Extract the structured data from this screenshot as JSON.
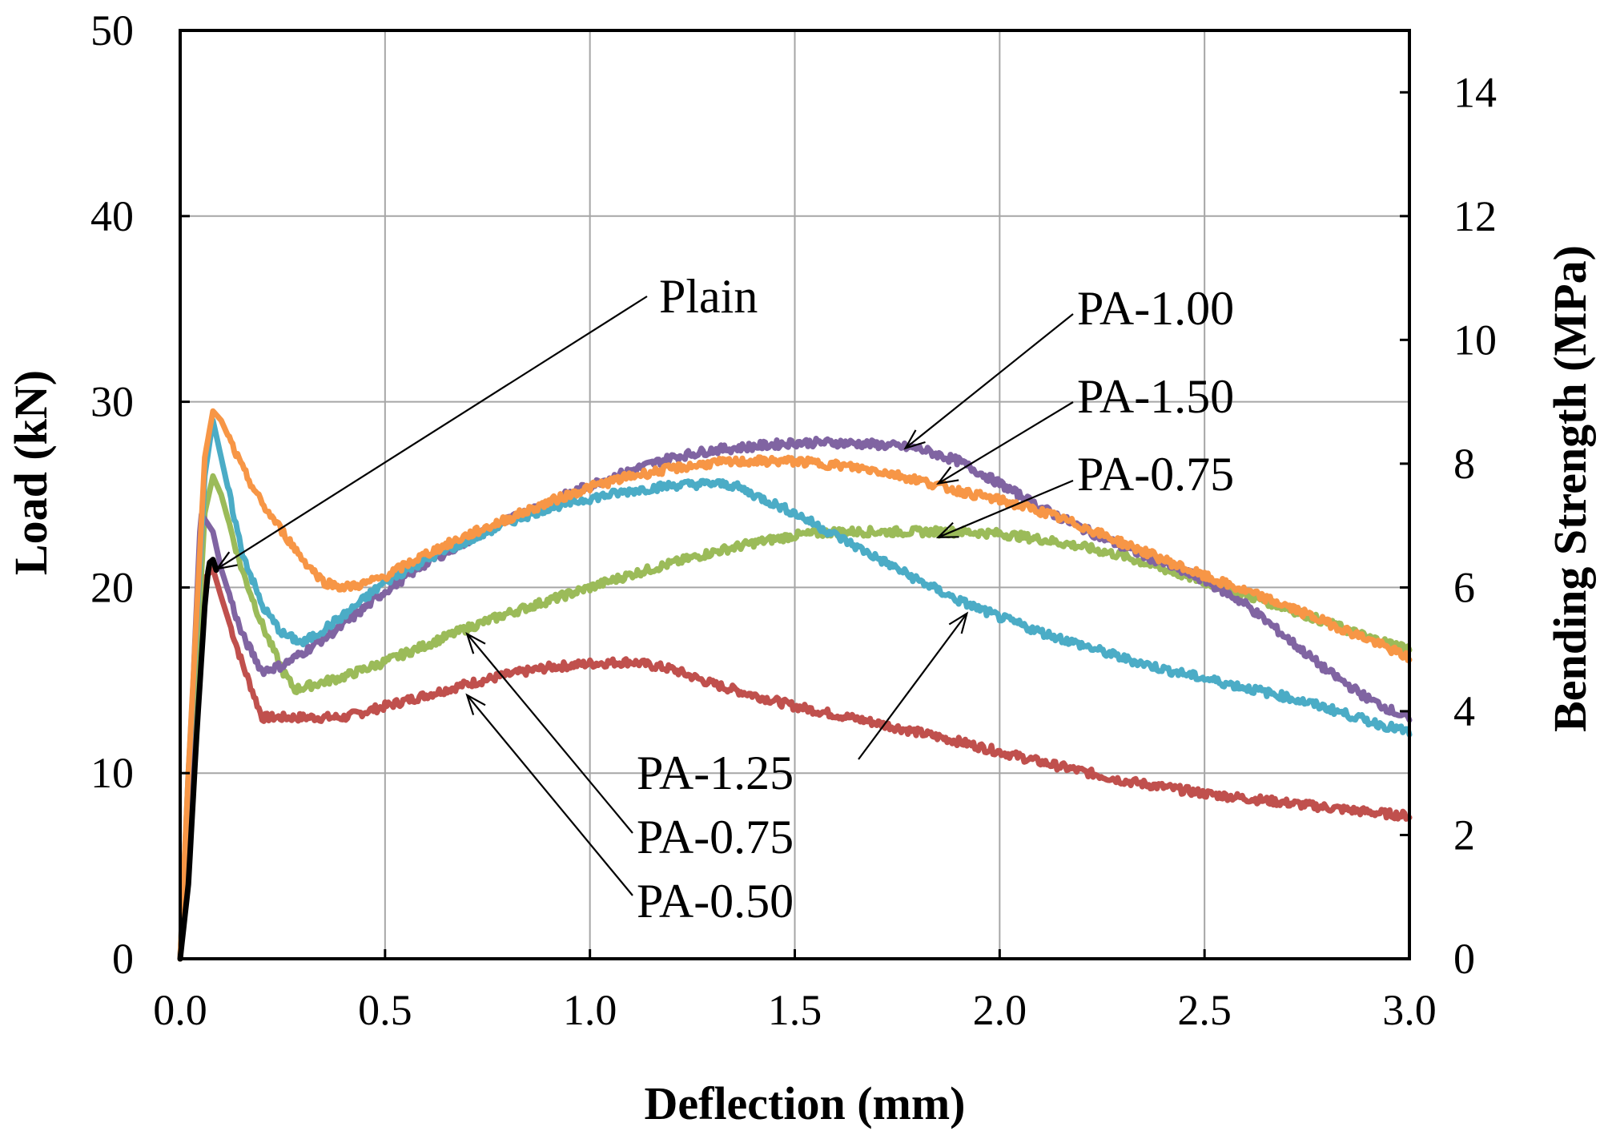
{
  "chart_data": {
    "type": "line",
    "xlabel": "Deflection (mm)",
    "ylabel": "Load (kN)",
    "y2label": "Bending Strength (MPa)",
    "xlim": [
      0.0,
      3.0
    ],
    "ylim": [
      0,
      50
    ],
    "y2lim": [
      0,
      15
    ],
    "xticks": [
      "0.0",
      "0.5",
      "1.0",
      "1.5",
      "2.0",
      "2.5",
      "3.0"
    ],
    "yticks": [
      "0",
      "10",
      "20",
      "30",
      "40",
      "50"
    ],
    "y2ticks": [
      "0",
      "2",
      "4",
      "6",
      "8",
      "10",
      "12",
      "14"
    ],
    "grid": true,
    "series": [
      {
        "name": "PA-0.50",
        "color": "#c0504d",
        "x": [
          0,
          0.02,
          0.06,
          0.08,
          0.1,
          0.15,
          0.2,
          0.3,
          0.4,
          0.5,
          0.6,
          0.7,
          0.8,
          0.9,
          1.0,
          1.1,
          1.2,
          1.3,
          1.5,
          1.7,
          1.9,
          2.1,
          2.3,
          2.5,
          2.7,
          2.9,
          3.0
        ],
        "y": [
          0,
          7,
          20.5,
          21,
          19.5,
          16,
          13,
          13,
          13,
          13.6,
          14.2,
          14.8,
          15.3,
          15.7,
          15.9,
          16,
          15.6,
          14.8,
          13.6,
          12.7,
          11.7,
          10.6,
          9.6,
          8.9,
          8.4,
          7.9,
          7.7
        ]
      },
      {
        "name": "PA-0.75",
        "color": "#9bbb59",
        "x": [
          0,
          0.02,
          0.06,
          0.08,
          0.1,
          0.15,
          0.2,
          0.25,
          0.28,
          0.4,
          0.5,
          0.6,
          0.7,
          0.8,
          0.9,
          1.0,
          1.1,
          1.2,
          1.3,
          1.4,
          1.5,
          1.6,
          1.7,
          1.8,
          1.9,
          2.0,
          2.1,
          2.2,
          2.3,
          2.4,
          2.5,
          2.6,
          2.7,
          2.8,
          2.9,
          3.0
        ],
        "y": [
          0,
          8,
          24,
          26,
          25,
          21,
          18,
          15.5,
          14.5,
          15.2,
          16,
          16.9,
          17.8,
          18.6,
          19.3,
          20,
          20.7,
          21.3,
          21.9,
          22.4,
          22.8,
          23,
          23,
          23,
          23,
          22.9,
          22.6,
          22.2,
          21.7,
          21,
          20.3,
          19.6,
          18.9,
          18.1,
          17.3,
          16.7
        ]
      },
      {
        "name": "PA-1.00",
        "color": "#8064a2",
        "x": [
          0,
          0.02,
          0.05,
          0.08,
          0.1,
          0.15,
          0.2,
          0.25,
          0.3,
          0.4,
          0.5,
          0.6,
          0.7,
          0.8,
          0.9,
          1.0,
          1.1,
          1.2,
          1.3,
          1.4,
          1.5,
          1.6,
          1.7,
          1.8,
          1.9,
          2.0,
          2.1,
          2.2,
          2.3,
          2.4,
          2.5,
          2.6,
          2.7,
          2.8,
          2.9,
          3.0
        ],
        "y": [
          0,
          9,
          24,
          23,
          21,
          17.5,
          15.5,
          15.8,
          16.5,
          18,
          19.8,
          21.3,
          22.5,
          23.6,
          24.6,
          25.5,
          26.3,
          27,
          27.4,
          27.6,
          27.8,
          27.8,
          27.7,
          27.5,
          26.8,
          25.6,
          24.3,
          23.2,
          22.2,
          21.3,
          20.4,
          19.1,
          17.3,
          15.5,
          14,
          12.9
        ]
      },
      {
        "name": "PA-1.25",
        "color": "#4bacc6",
        "x": [
          0,
          0.02,
          0.06,
          0.08,
          0.1,
          0.15,
          0.2,
          0.25,
          0.3,
          0.4,
          0.5,
          0.6,
          0.7,
          0.8,
          0.9,
          1.0,
          1.1,
          1.2,
          1.3,
          1.35,
          1.4,
          1.5,
          1.6,
          1.7,
          1.8,
          1.9,
          2.0,
          2.1,
          2.2,
          2.3,
          2.4,
          2.5,
          2.6,
          2.7,
          2.8,
          2.9,
          3.0
        ],
        "y": [
          0,
          10,
          26,
          29,
          27,
          22,
          19,
          17.5,
          17,
          18.5,
          20.3,
          21.5,
          22.5,
          23.5,
          24.3,
          24.8,
          25.2,
          25.5,
          25.6,
          25.5,
          25,
          24,
          22.8,
          21.6,
          20.4,
          19.3,
          18.4,
          17.6,
          16.9,
          16.2,
          15.6,
          15.1,
          14.6,
          14.1,
          13.5,
          12.8,
          12.2
        ]
      },
      {
        "name": "PA-1.50",
        "color": "#f79646",
        "x": [
          0,
          0.02,
          0.06,
          0.08,
          0.1,
          0.15,
          0.2,
          0.25,
          0.3,
          0.35,
          0.4,
          0.45,
          0.5,
          0.6,
          0.7,
          0.8,
          0.9,
          1.0,
          1.1,
          1.2,
          1.3,
          1.4,
          1.5,
          1.6,
          1.7,
          1.8,
          1.9,
          2.0,
          2.1,
          2.2,
          2.3,
          2.4,
          2.5,
          2.6,
          2.7,
          2.8,
          2.9,
          3.0
        ],
        "y": [
          0,
          10,
          27,
          29.5,
          29,
          26.5,
          24.5,
          23,
          21.5,
          20.3,
          20,
          20.2,
          20.6,
          21.8,
          22.8,
          23.7,
          24.6,
          25.4,
          26,
          26.4,
          26.7,
          26.8,
          26.8,
          26.6,
          26.3,
          25.8,
          25.2,
          24.7,
          24.1,
          23.3,
          22.4,
          21.5,
          20.6,
          19.8,
          19,
          18.1,
          17.2,
          16.2
        ]
      },
      {
        "name": "Plain",
        "color": "#000000",
        "x": [
          0,
          0.02,
          0.04,
          0.06,
          0.07,
          0.08,
          0.09
        ],
        "y": [
          0,
          4,
          12,
          19,
          21.3,
          21.5,
          20.8
        ]
      }
    ],
    "annotations": [
      {
        "text": "Plain",
        "target": [
          0.09,
          21
        ]
      },
      {
        "text": "PA-1.00",
        "target": [
          1.77,
          27.5
        ]
      },
      {
        "text": "PA-1.50",
        "target": [
          1.85,
          25.6
        ]
      },
      {
        "text": "PA-0.75",
        "target": [
          1.85,
          22.7
        ]
      },
      {
        "text": "PA-1.25",
        "target": [
          1.92,
          18.6
        ]
      },
      {
        "text": "PA-0.75",
        "target": [
          0.7,
          17.5
        ]
      },
      {
        "text": "PA-0.50",
        "target": [
          0.7,
          14.2
        ]
      }
    ]
  }
}
